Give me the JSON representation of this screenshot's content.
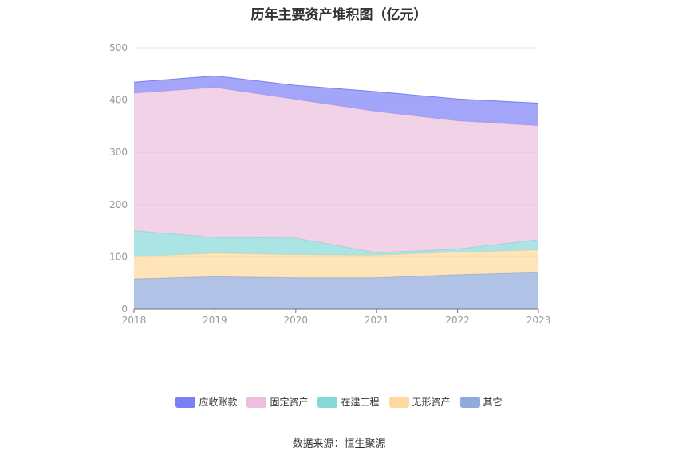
{
  "chart_data": {
    "type": "area",
    "title": "历年主要资产堆积图（亿元）",
    "x": [
      "2018",
      "2019",
      "2020",
      "2021",
      "2022",
      "2023"
    ],
    "y_ticks": [
      "0",
      "100",
      "200",
      "300",
      "400",
      "500"
    ],
    "ylim": [
      0,
      500
    ],
    "grid": true,
    "legend_position": "bottom",
    "stacked": true,
    "series": [
      {
        "name": "其它",
        "color": "#8faadc",
        "values": [
          58,
          62,
          60,
          60,
          66,
          70
        ]
      },
      {
        "name": "无形资产",
        "color": "#ffd99c",
        "values": [
          42,
          45,
          44,
          43,
          43,
          43
        ]
      },
      {
        "name": "在建工程",
        "color": "#88d8d8",
        "values": [
          50,
          30,
          32,
          5,
          6,
          20
        ]
      },
      {
        "name": "固定资产",
        "color": "#ecbfdc",
        "values": [
          263,
          287,
          265,
          270,
          245,
          218
        ]
      },
      {
        "name": "应收账款",
        "color": "#7b7ff5",
        "values": [
          21,
          22,
          27,
          38,
          42,
          43
        ]
      }
    ],
    "legend_order": [
      "应收账款",
      "固定资产",
      "在建工程",
      "无形资产",
      "其它"
    ]
  },
  "source": "数据来源：恒生聚源"
}
